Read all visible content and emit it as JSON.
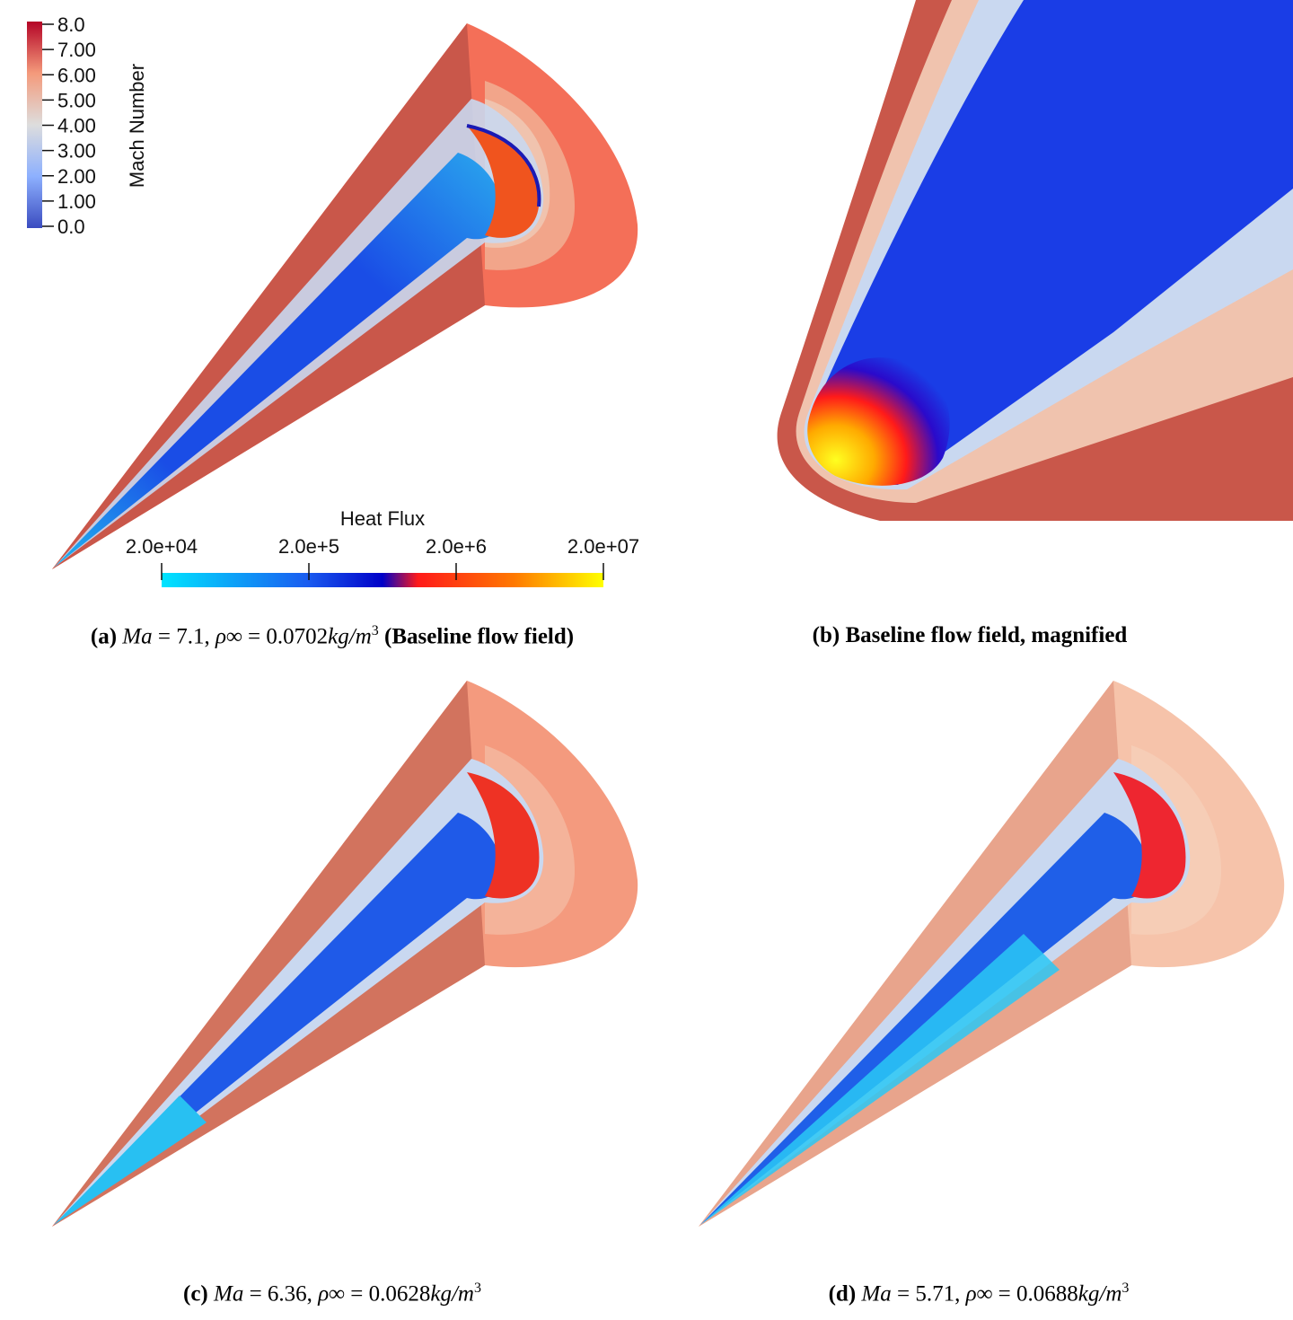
{
  "figure": {
    "panels": [
      {
        "id": "a",
        "caption": {
          "tag": "(a)",
          "ma_label": "Ma",
          "ma_value": "= 7.1,",
          "rho_label": "ρ∞",
          "rho_value": "= 0.0702",
          "unit": "kg/m",
          "unit_exp": "3",
          "note": "(Baseline flow field)"
        },
        "colors": {
          "outer": "#c9574a",
          "shock": "#f46f58",
          "ring": "#f2a58a",
          "light": "#f0c3ae",
          "body": "#1a4de6",
          "tip": "#21b7f0",
          "base": "#f0541e"
        }
      },
      {
        "id": "b",
        "caption": {
          "tag": "(b)",
          "note": "Baseline flow field, magnified"
        }
      },
      {
        "id": "c",
        "caption": {
          "tag": "(c)",
          "ma_label": "Ma",
          "ma_value": "= 6.36,",
          "rho_label": "ρ∞",
          "rho_value": "= 0.0628",
          "unit": "kg/m",
          "unit_exp": "3"
        },
        "colors": {
          "outer": "#d2735e",
          "shock": "#f49a7e",
          "ring": "#f4b39a",
          "light": "#f3cdb8",
          "body": "#1f5ae8",
          "tip": "#28c0f2",
          "base": "#ee3224"
        }
      },
      {
        "id": "d",
        "caption": {
          "tag": "(d)",
          "ma_label": "Ma",
          "ma_value": "= 5.71,",
          "rho_label": "ρ∞",
          "rho_value": "= 0.0688",
          "unit": "kg/m",
          "unit_exp": "3"
        },
        "colors": {
          "outer": "#e8a48c",
          "shock": "#f6c3aa",
          "ring": "#f6cdb6",
          "light": "#f5d8c6",
          "body": "#1f5fe8",
          "tip": "#2ac8f4",
          "base": "#ee2630"
        }
      }
    ],
    "mach_legend": {
      "title": "Mach Number",
      "ticks": [
        "8.0",
        "7.00",
        "6.00",
        "5.00",
        "4.00",
        "3.00",
        "2.00",
        "1.00",
        "0.0"
      ]
    },
    "heat_flux_legend": {
      "title": "Heat Flux",
      "ticks": [
        "2.0e+04",
        "2.0e+5",
        "2.0e+6",
        "2.0e+07"
      ]
    }
  }
}
